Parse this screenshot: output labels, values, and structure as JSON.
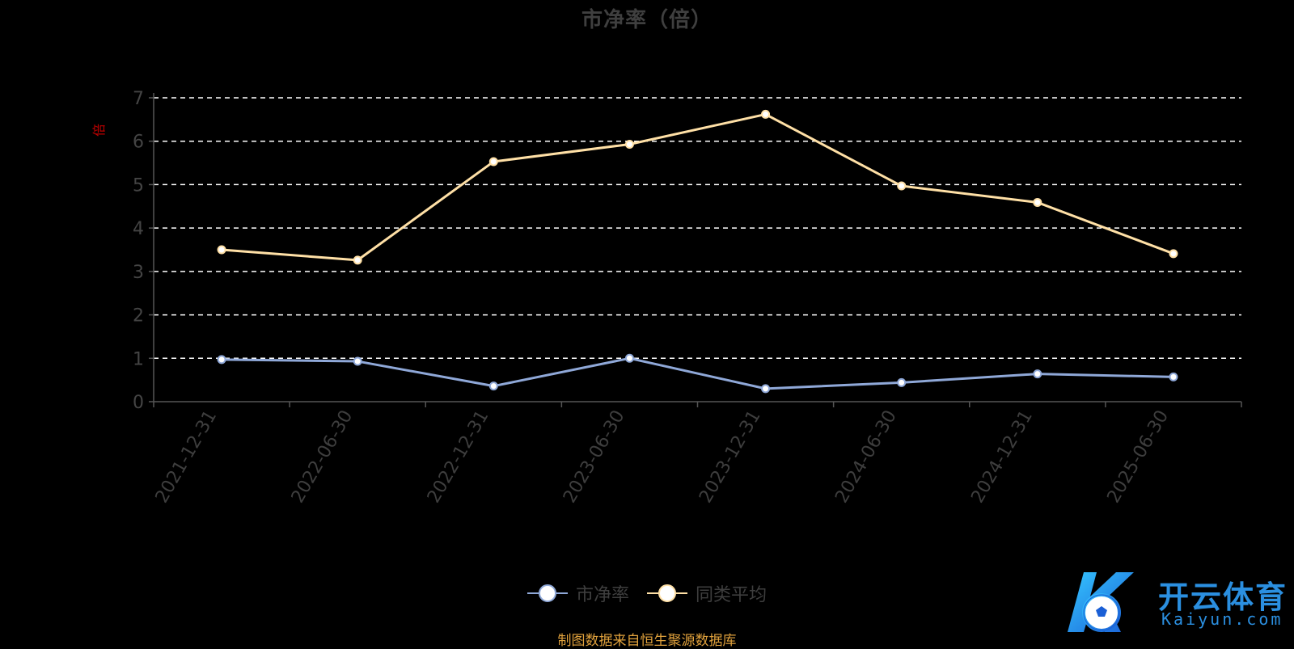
{
  "chart_data": {
    "type": "line",
    "title": "市净率（倍）",
    "ylabel": "倍",
    "categories": [
      "2021-12-31",
      "2022-06-30",
      "2022-12-31",
      "2023-06-30",
      "2023-12-31",
      "2024-06-30",
      "2024-12-31",
      "2025-06-30"
    ],
    "ylim": [
      0,
      7
    ],
    "yticks": [
      "0",
      "1",
      "2",
      "3",
      "4",
      "5",
      "6",
      "7"
    ],
    "grid": true,
    "legend_position": "bottom-center",
    "series": [
      {
        "name": "市净率",
        "color": "#8fa8d8",
        "values": [
          0.97,
          0.93,
          0.36,
          1.0,
          0.3,
          0.44,
          0.64,
          0.57
        ]
      },
      {
        "name": "同类平均",
        "color": "#ffe0a6",
        "values": [
          3.5,
          3.26,
          5.53,
          5.93,
          6.62,
          4.97,
          4.59,
          3.41
        ]
      }
    ]
  },
  "source_note": "制图数据来自恒生聚源数据库",
  "watermark": {
    "name_cn": "开云体育",
    "name_en": "Kaiyun.com"
  }
}
